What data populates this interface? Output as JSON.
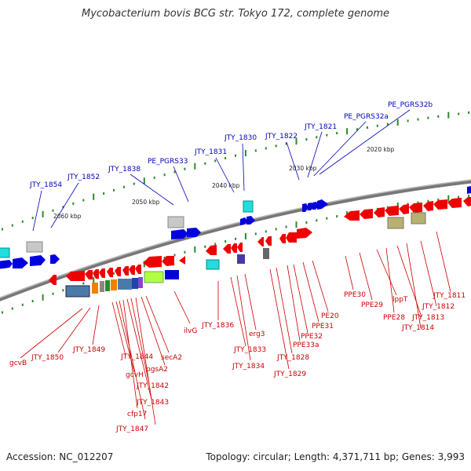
{
  "title": "Mycobacterium bovis BCG str. Tokyo 172, complete genome",
  "footer": {
    "accession": "Accession: NC_012207",
    "summary": "Topology: circular; Length: 4,371,711 bp; Genes: 3,993"
  },
  "colors": {
    "label_top": "#0000bb",
    "label_bottom": "#cc0000",
    "backbone": "#8a8a8a",
    "tick": "#2a8a2a"
  },
  "kbp_labels": [
    "2020 kbp",
    "2030 kbp",
    "2040 kbp",
    "2050 kbp",
    "2060 kbp"
  ],
  "top_labels": [
    "JTY_1854",
    "JTY_1852",
    "JTY_1838",
    "PE_PGRS33",
    "JTY_1831",
    "JTY_1830",
    "JTY_1822",
    "JTY_1821",
    "PE_PGRS32a",
    "PE_PGRS32b"
  ],
  "bottom_labels": [
    "gcvB",
    "JTY_1850",
    "JTY_1849",
    "JTY_1844",
    "gcvH",
    "pgsA2",
    "secA2",
    "JTY_1842",
    "JTY_1843",
    "cfp17",
    "JTY_1847",
    "ilvG",
    "JTY_1836",
    "erg3",
    "JTY_1833",
    "JTY_1834",
    "JTY_1828",
    "JTY_1829",
    "PPE33a",
    "PPE32",
    "PPE31",
    "PE20",
    "PPE30",
    "PPE29",
    "lppT",
    "PPE28",
    "JTY_1813",
    "JTY_1814",
    "JTY_1812",
    "JTY_1811"
  ]
}
